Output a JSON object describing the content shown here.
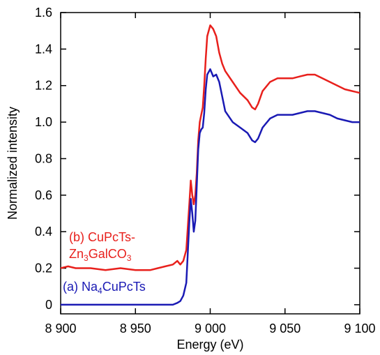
{
  "chart_data": {
    "type": "line",
    "title": "",
    "xlabel": "Energy (eV)",
    "ylabel": "Normalized intensity",
    "xlim": [
      8900,
      9100
    ],
    "ylim": [
      -0.05,
      1.6
    ],
    "x_ticks": [
      8900,
      8950,
      9000,
      9050,
      9100
    ],
    "x_tick_labels": [
      "8 900",
      "8 950",
      "9 000",
      "9 050",
      "9 100"
    ],
    "y_ticks": [
      0,
      0.2,
      0.4,
      0.6,
      0.8,
      1.0,
      1.2,
      1.4,
      1.6
    ],
    "y_tick_labels": [
      "0",
      "0.2",
      "0.4",
      "0.6",
      "0.8",
      "1.0",
      "1.2",
      "1.4",
      "1.6"
    ],
    "grid": false,
    "legend": "inline labels near left side of curves",
    "series": [
      {
        "name": "(b) CuPcTs-Zn3GaLCO3",
        "label_line1": "(b) CuPcTs-",
        "label_line2_parts": [
          "Zn",
          "3",
          "GalCO",
          "3"
        ],
        "color": "#e8201c",
        "points": [
          [
            8900,
            0.2
          ],
          [
            8905,
            0.21
          ],
          [
            8910,
            0.2
          ],
          [
            8920,
            0.2
          ],
          [
            8930,
            0.19
          ],
          [
            8940,
            0.2
          ],
          [
            8950,
            0.19
          ],
          [
            8960,
            0.19
          ],
          [
            8965,
            0.2
          ],
          [
            8970,
            0.21
          ],
          [
            8975,
            0.22
          ],
          [
            8978,
            0.24
          ],
          [
            8980,
            0.22
          ],
          [
            8982,
            0.24
          ],
          [
            8984,
            0.3
          ],
          [
            8986,
            0.55
          ],
          [
            8987,
            0.68
          ],
          [
            8988,
            0.6
          ],
          [
            8989,
            0.55
          ],
          [
            8990,
            0.6
          ],
          [
            8991,
            0.72
          ],
          [
            8992,
            0.9
          ],
          [
            8993,
            1.0
          ],
          [
            8994,
            1.04
          ],
          [
            8995,
            1.08
          ],
          [
            8996,
            1.2
          ],
          [
            8997,
            1.35
          ],
          [
            8998,
            1.47
          ],
          [
            9000,
            1.53
          ],
          [
            9002,
            1.51
          ],
          [
            9004,
            1.47
          ],
          [
            9006,
            1.38
          ],
          [
            9008,
            1.32
          ],
          [
            9010,
            1.28
          ],
          [
            9015,
            1.22
          ],
          [
            9020,
            1.16
          ],
          [
            9025,
            1.12
          ],
          [
            9028,
            1.08
          ],
          [
            9030,
            1.07
          ],
          [
            9032,
            1.1
          ],
          [
            9035,
            1.17
          ],
          [
            9040,
            1.22
          ],
          [
            9045,
            1.24
          ],
          [
            9050,
            1.24
          ],
          [
            9055,
            1.24
          ],
          [
            9060,
            1.25
          ],
          [
            9065,
            1.26
          ],
          [
            9070,
            1.26
          ],
          [
            9075,
            1.24
          ],
          [
            9080,
            1.22
          ],
          [
            9085,
            1.2
          ],
          [
            9090,
            1.18
          ],
          [
            9095,
            1.17
          ],
          [
            9100,
            1.16
          ]
        ]
      },
      {
        "name": "(a) Na4CuPcTs",
        "label_parts": [
          "(a) Na",
          "4",
          "CuPcTs"
        ],
        "color": "#1a1ab4",
        "points": [
          [
            8900,
            0.0
          ],
          [
            8910,
            0.0
          ],
          [
            8920,
            0.0
          ],
          [
            8930,
            0.0
          ],
          [
            8940,
            0.0
          ],
          [
            8950,
            0.0
          ],
          [
            8960,
            0.0
          ],
          [
            8970,
            0.0
          ],
          [
            8975,
            0.0
          ],
          [
            8978,
            0.01
          ],
          [
            8980,
            0.02
          ],
          [
            8982,
            0.05
          ],
          [
            8984,
            0.12
          ],
          [
            8986,
            0.45
          ],
          [
            8987,
            0.58
          ],
          [
            8988,
            0.5
          ],
          [
            8989,
            0.4
          ],
          [
            8990,
            0.46
          ],
          [
            8991,
            0.65
          ],
          [
            8992,
            0.85
          ],
          [
            8993,
            0.94
          ],
          [
            8994,
            0.96
          ],
          [
            8995,
            0.97
          ],
          [
            8996,
            1.05
          ],
          [
            8997,
            1.18
          ],
          [
            8998,
            1.26
          ],
          [
            9000,
            1.29
          ],
          [
            9002,
            1.25
          ],
          [
            9004,
            1.26
          ],
          [
            9006,
            1.22
          ],
          [
            9008,
            1.14
          ],
          [
            9010,
            1.06
          ],
          [
            9015,
            1.0
          ],
          [
            9020,
            0.97
          ],
          [
            9025,
            0.94
          ],
          [
            9028,
            0.9
          ],
          [
            9030,
            0.89
          ],
          [
            9032,
            0.91
          ],
          [
            9035,
            0.97
          ],
          [
            9040,
            1.02
          ],
          [
            9045,
            1.04
          ],
          [
            9050,
            1.04
          ],
          [
            9055,
            1.04
          ],
          [
            9060,
            1.05
          ],
          [
            9065,
            1.06
          ],
          [
            9070,
            1.06
          ],
          [
            9075,
            1.05
          ],
          [
            9080,
            1.04
          ],
          [
            9085,
            1.02
          ],
          [
            9090,
            1.01
          ],
          [
            9095,
            1.0
          ],
          [
            9100,
            1.0
          ]
        ]
      }
    ]
  }
}
